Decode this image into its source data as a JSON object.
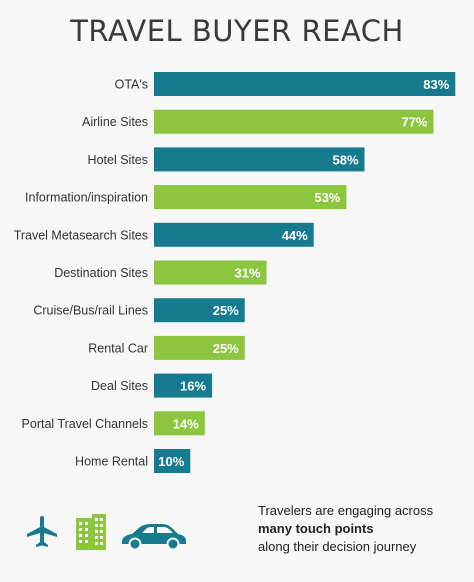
{
  "title": "TRAVEL BUYER REACH",
  "colors": {
    "teal": "#177b8f",
    "green": "#8cc63f",
    "icon_teal": "#177b8f",
    "icon_green": "#8cc63f"
  },
  "chart_data": {
    "type": "bar",
    "orientation": "horizontal",
    "title": "TRAVEL BUYER REACH",
    "categories": [
      "OTA's",
      "Airline Sites",
      "Hotel Sites",
      "Information/inspiration",
      "Travel Metasearch Sites",
      "Destination Sites",
      "Cruise/Bus/rail Lines",
      "Rental Car",
      "Deal Sites",
      "Portal Travel Channels",
      "Home Rental"
    ],
    "values": [
      83,
      77,
      58,
      53,
      44,
      31,
      25,
      25,
      16,
      14,
      10
    ],
    "value_labels": [
      "83%",
      "77%",
      "58%",
      "53%",
      "44%",
      "31%",
      "25%",
      "25%",
      "16%",
      "14%",
      "10%"
    ],
    "bar_colors": [
      "teal",
      "green",
      "teal",
      "green",
      "teal",
      "green",
      "teal",
      "green",
      "teal",
      "green",
      "teal"
    ],
    "xlim": [
      0,
      100
    ],
    "grid": false,
    "legend": "none"
  },
  "footer": {
    "line1": "Travelers are engaging across",
    "line2": "many touch points",
    "line3": "along their decision journey"
  },
  "icons": [
    "airplane-icon",
    "building-icon",
    "car-icon"
  ]
}
